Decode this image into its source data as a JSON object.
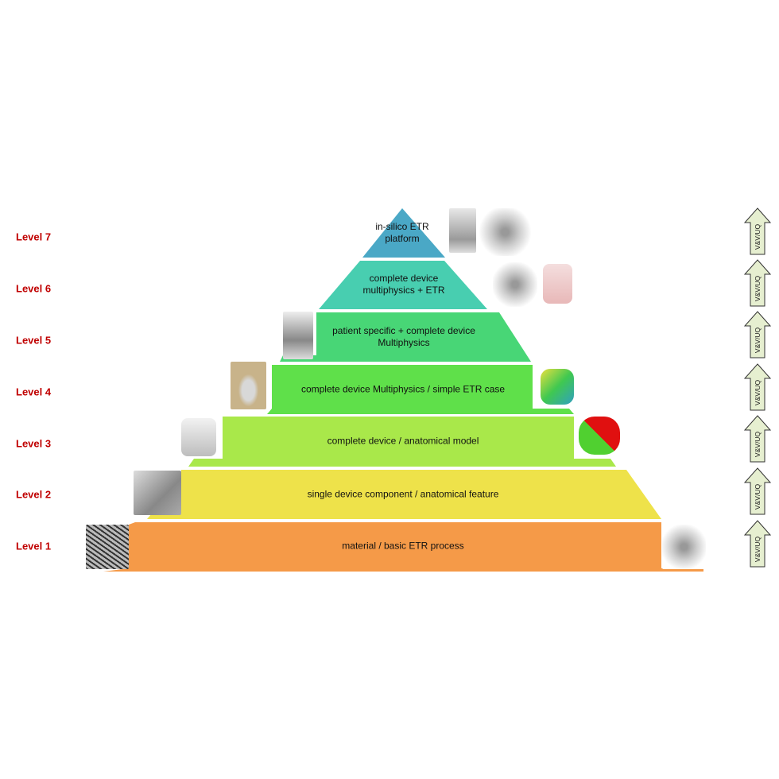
{
  "levels": [
    {
      "label": "Level 7",
      "text": [
        "in-silico ETR",
        "platform"
      ],
      "color": "#4aa8c6"
    },
    {
      "label": "Level 6",
      "text": [
        "complete device",
        "multiphysics + ETR"
      ],
      "color": "#48ceb0"
    },
    {
      "label": "Level 5",
      "text": [
        "patient specific + complete device",
        "Multiphysics"
      ],
      "color": "#48d676"
    },
    {
      "label": "Level 4",
      "text": [
        "complete device Multiphysics / simple ETR case"
      ],
      "color": "#5fe04a"
    },
    {
      "label": "Level 3",
      "text": [
        "complete device / anatomical model"
      ],
      "color": "#a9e84a"
    },
    {
      "label": "Level 2",
      "text": [
        "single device component / anatomical feature"
      ],
      "color": "#eee24a"
    },
    {
      "label": "Level 1",
      "text": [
        "material / basic ETR process"
      ],
      "color": "#f59a48"
    }
  ],
  "arrow_label": "V&V/UQ",
  "colors": {
    "level_label": "#c00000",
    "arrow_fill": "#e6efd0"
  }
}
